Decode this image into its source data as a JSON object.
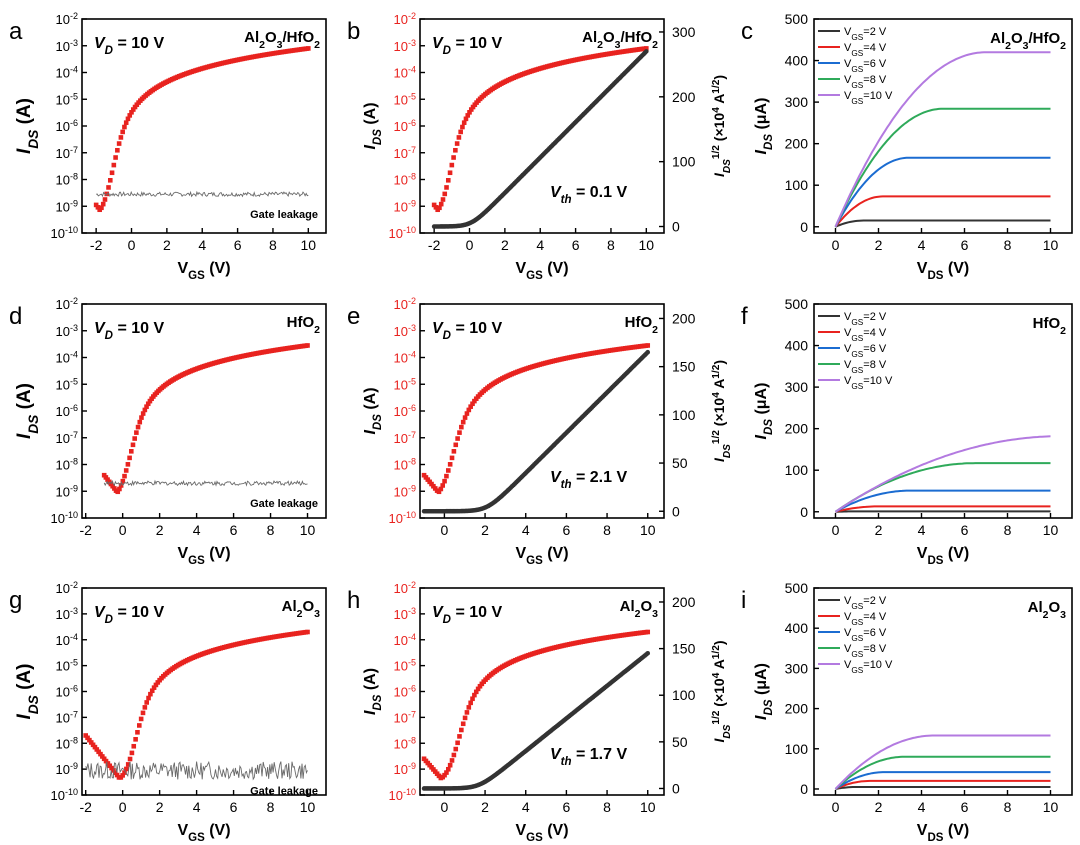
{
  "colors": {
    "red": "#e8231f",
    "black": "#333333",
    "gray": "#6a6a6a",
    "tick_red": "#e8231f"
  },
  "chart_data": [
    {
      "id": "a",
      "type": "scatter",
      "panel_label": "a",
      "title": "Al2O3/HfO2",
      "xlabel": "VGS (V)",
      "ylabel": "IDS (A)",
      "xlim": [
        -2.8,
        11
      ],
      "ylog": [
        -10,
        -2
      ],
      "xticks": [
        "-2",
        "0",
        "2",
        "4",
        "6",
        "8",
        "10"
      ],
      "yticks": [
        "-10",
        "-9",
        "-8",
        "-7",
        "-6",
        "-5",
        "-4",
        "-3",
        "-2"
      ],
      "vd_note": "10 V",
      "leakage_label": "Gate leakage",
      "transfer": {
        "v0": -2,
        "v1": 10,
        "vth": -0.8,
        "log_max": -3.1,
        "log_min": -9.4,
        "dip": -1.5
      },
      "leakage": {
        "v0": -2,
        "v1": 10,
        "log": -8.55
      }
    },
    {
      "id": "b",
      "type": "scatter",
      "panel_label": "b",
      "title": "Al2O3/HfO2",
      "xlabel": "VGS (V)",
      "ylabel": "IDS (A)",
      "y2label": "IDS1/2 (×10-4 A1/2)",
      "xlim": [
        -2.8,
        11
      ],
      "ylog": [
        -10,
        -2
      ],
      "y2lim": [
        -10,
        320
      ],
      "xticks": [
        "-2",
        "0",
        "2",
        "4",
        "6",
        "8",
        "10"
      ],
      "yticks": [
        "-10",
        "-9",
        "-8",
        "-7",
        "-6",
        "-5",
        "-4",
        "-3",
        "-2"
      ],
      "y2ticks": [
        "0",
        "100",
        "200",
        "300"
      ],
      "vd_note": "10 V",
      "vth_note": "0.1 V",
      "transfer": {
        "v0": -2,
        "v1": 10,
        "vth": -0.8,
        "log_max": -3.1,
        "log_min": -9.4,
        "dip": -1.5
      },
      "sqrt_curve": {
        "v0": -2,
        "v1": 10,
        "vth": 0.1,
        "ymax": 270,
        "base": 0
      }
    },
    {
      "id": "c",
      "type": "line",
      "panel_label": "c",
      "title": "Al2O3/HfO2",
      "xlabel": "VDS (V)",
      "ylabel": "IDS (μA)",
      "xlim": [
        -1,
        11
      ],
      "ylim": [
        -15,
        500
      ],
      "xticks": [
        "0",
        "2",
        "4",
        "6",
        "8",
        "10"
      ],
      "yticks": [
        "0",
        "100",
        "200",
        "300",
        "400",
        "500"
      ],
      "series": [
        {
          "name": "VGS=2 V",
          "vgs": "2",
          "isat": 15,
          "vsat": 1.3,
          "color": "#333333"
        },
        {
          "name": "VGS=4 V",
          "vgs": "4",
          "isat": 73,
          "vsat": 2.2,
          "color": "#e8231f"
        },
        {
          "name": "VGS=6 V",
          "vgs": "6",
          "isat": 166,
          "vsat": 3.4,
          "color": "#1b6cd1"
        },
        {
          "name": "VGS=8 V",
          "vgs": "8",
          "isat": 284,
          "vsat": 5.0,
          "color": "#2faa5a"
        },
        {
          "name": "VGS=10 V",
          "vgs": "10",
          "isat": 420,
          "vsat": 7.0,
          "color": "#b37ae0"
        }
      ]
    },
    {
      "id": "d",
      "type": "scatter",
      "panel_label": "d",
      "title": "HfO2",
      "xlabel": "VGS (V)",
      "ylabel": "IDS (A)",
      "xlim": [
        -2.2,
        11
      ],
      "ylog": [
        -10,
        -2
      ],
      "xticks": [
        "-2",
        "0",
        "2",
        "4",
        "6",
        "8",
        "10"
      ],
      "yticks": [
        "-10",
        "-9",
        "-8",
        "-7",
        "-6",
        "-5",
        "-4",
        "-3",
        "-2"
      ],
      "vd_note": "10 V",
      "leakage_label": "Gate leakage",
      "transfer": {
        "v0": -1,
        "v1": 10,
        "vth": 0.7,
        "log_max": -3.55,
        "log_min": -9.3,
        "dip": 0
      },
      "leakage": {
        "v0": -1,
        "v1": 10,
        "log": -8.7
      }
    },
    {
      "id": "e",
      "type": "scatter",
      "panel_label": "e",
      "title": "HfO2",
      "xlabel": "VGS (V)",
      "ylabel": "IDS (A)",
      "y2label": "IDS1/2 (×10-4 A1/2)",
      "xlim": [
        -1.2,
        10.8
      ],
      "ylog": [
        -10,
        -2
      ],
      "y2lim": [
        -7,
        215
      ],
      "xticks": [
        "0",
        "2",
        "4",
        "6",
        "8",
        "10"
      ],
      "yticks": [
        "-10",
        "-9",
        "-8",
        "-7",
        "-6",
        "-5",
        "-4",
        "-3",
        "-2"
      ],
      "y2ticks": [
        "0",
        "50",
        "100",
        "150",
        "200"
      ],
      "vd_note": "10 V",
      "vth_note": "2.1 V",
      "transfer": {
        "v0": -1,
        "v1": 10,
        "vth": 0.7,
        "log_max": -3.55,
        "log_min": -9.3,
        "dip": 0
      },
      "sqrt_curve": {
        "v0": -1,
        "v1": 10,
        "vth": 2.1,
        "ymax": 165,
        "base": 0
      }
    },
    {
      "id": "f",
      "type": "line",
      "panel_label": "f",
      "title": "HfO2",
      "xlabel": "VDS (V)",
      "ylabel": "IDS (μA)",
      "xlim": [
        -1,
        11
      ],
      "ylim": [
        -15,
        500
      ],
      "xticks": [
        "0",
        "2",
        "4",
        "6",
        "8",
        "10"
      ],
      "yticks": [
        "0",
        "100",
        "200",
        "300",
        "400",
        "500"
      ],
      "series": [
        {
          "name": "VGS=2 V",
          "vgs": "2",
          "isat": 1,
          "vsat": 1.0,
          "color": "#333333"
        },
        {
          "name": "VGS=4 V",
          "vgs": "4",
          "isat": 13,
          "vsat": 2.0,
          "color": "#e8231f"
        },
        {
          "name": "VGS=6 V",
          "vgs": "6",
          "isat": 51,
          "vsat": 3.5,
          "color": "#1b6cd1"
        },
        {
          "name": "VGS=8 V",
          "vgs": "8",
          "isat": 117,
          "vsat": 6.5,
          "color": "#2faa5a"
        },
        {
          "name": "VGS=10 V",
          "vgs": "10",
          "isat": 182,
          "vsat": 10.5,
          "color": "#b37ae0"
        }
      ]
    },
    {
      "id": "g",
      "type": "scatter",
      "panel_label": "g",
      "title": "Al2O3",
      "xlabel": "VGS (V)",
      "ylabel": "IDS (A)",
      "xlim": [
        -2.2,
        11
      ],
      "ylog": [
        -10,
        -2
      ],
      "xticks": [
        "-2",
        "0",
        "2",
        "4",
        "6",
        "8",
        "10"
      ],
      "yticks": [
        "-10",
        "-9",
        "-8",
        "-7",
        "-6",
        "-5",
        "-4",
        "-3",
        "-2"
      ],
      "vd_note": "10 V",
      "leakage_label": "Gate leakage",
      "transfer": {
        "v0": -2,
        "v1": 10,
        "vth": 1.0,
        "log_max": -3.7,
        "log_min": -9.5,
        "dip": 0
      },
      "leakage": {
        "v0": -2,
        "v1": 10,
        "log": -9.05,
        "noisy": true
      }
    },
    {
      "id": "h",
      "type": "scatter",
      "panel_label": "h",
      "title": "Al2O3",
      "xlabel": "VGS (V)",
      "ylabel": "IDS (A)",
      "y2label": "IDS1/2 (×10-4 A1/2)",
      "xlim": [
        -1.2,
        10.8
      ],
      "ylog": [
        -10,
        -2
      ],
      "y2lim": [
        -7,
        215
      ],
      "xticks": [
        "0",
        "2",
        "4",
        "6",
        "8",
        "10"
      ],
      "yticks": [
        "-10",
        "-9",
        "-8",
        "-7",
        "-6",
        "-5",
        "-4",
        "-3",
        "-2"
      ],
      "y2ticks": [
        "0",
        "50",
        "100",
        "150",
        "200"
      ],
      "vd_note": "10 V",
      "vth_note": "1.7 V",
      "transfer": {
        "v0": -1,
        "v1": 10,
        "vth": 1.0,
        "log_max": -3.7,
        "log_min": -9.5,
        "dip": 0
      },
      "sqrt_curve": {
        "v0": -1,
        "v1": 10,
        "vth": 1.7,
        "ymax": 145,
        "base": 0
      }
    },
    {
      "id": "i",
      "type": "line",
      "panel_label": "i",
      "title": "Al2O3",
      "xlabel": "VDS (V)",
      "ylabel": "IDS (μA)",
      "xlim": [
        -1,
        11
      ],
      "ylim": [
        -15,
        500
      ],
      "xticks": [
        "0",
        "2",
        "4",
        "6",
        "8",
        "10"
      ],
      "yticks": [
        "0",
        "100",
        "200",
        "300",
        "400",
        "500"
      ],
      "series": [
        {
          "name": "VGS=2 V",
          "vgs": "2",
          "isat": 5,
          "vsat": 1.0,
          "color": "#333333"
        },
        {
          "name": "VGS=4 V",
          "vgs": "4",
          "isat": 20,
          "vsat": 1.6,
          "color": "#e8231f"
        },
        {
          "name": "VGS=6 V",
          "vgs": "6",
          "isat": 42,
          "vsat": 2.3,
          "color": "#1b6cd1"
        },
        {
          "name": "VGS=8 V",
          "vgs": "8",
          "isat": 80,
          "vsat": 3.2,
          "color": "#2faa5a"
        },
        {
          "name": "VGS=10 V",
          "vgs": "10",
          "isat": 133,
          "vsat": 4.6,
          "color": "#b37ae0"
        }
      ]
    }
  ]
}
